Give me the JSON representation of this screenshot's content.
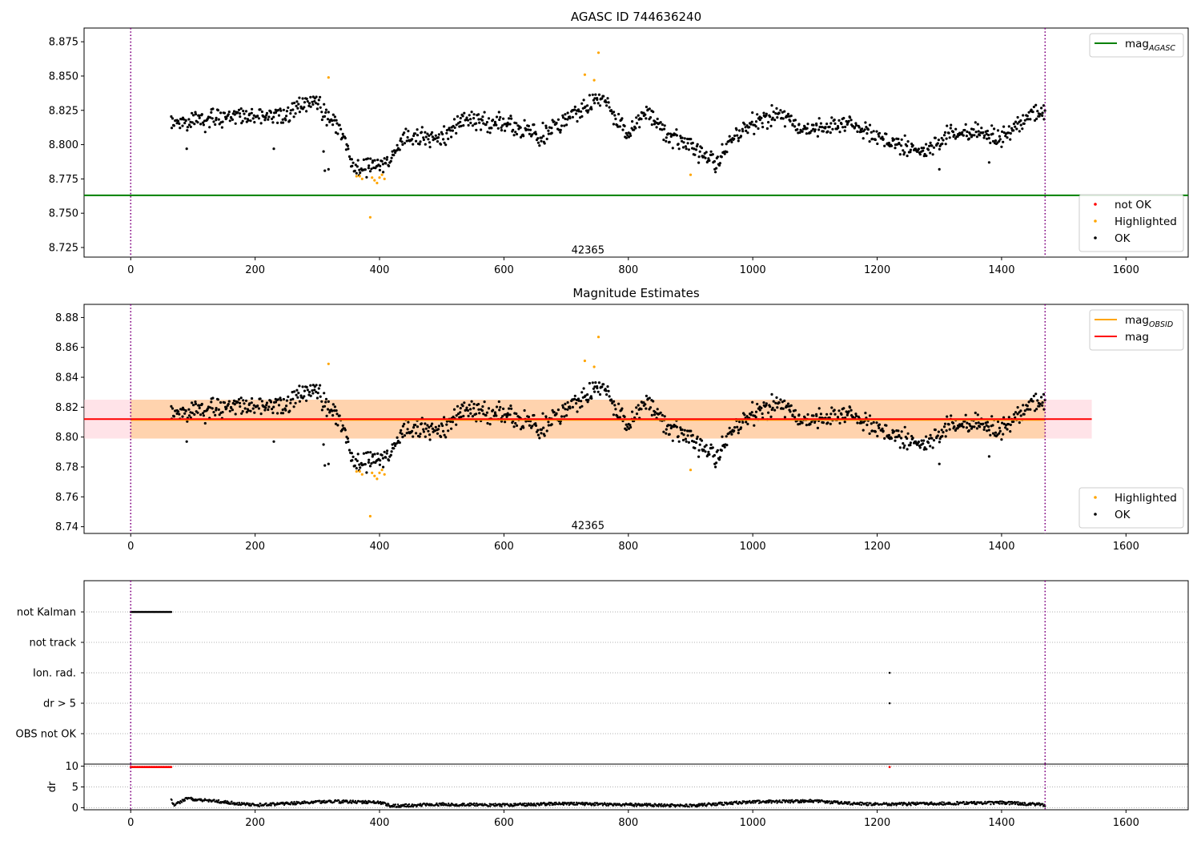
{
  "figure_title": "AGASC ID 744636240",
  "chart_data": [
    {
      "id": "top",
      "type": "scatter",
      "title": "AGASC ID 744636240",
      "xlim": [
        -75,
        1700
      ],
      "ylim": [
        8.718,
        8.885
      ],
      "xticks": [
        0,
        200,
        400,
        600,
        800,
        1000,
        1200,
        1400,
        1600
      ],
      "yticks": [
        "8.725",
        "8.750",
        "8.775",
        "8.800",
        "8.825",
        "8.850",
        "8.875"
      ],
      "vlines": [
        0,
        1470
      ],
      "hlines": [
        {
          "name": "mag_AGASC",
          "value": 8.763,
          "x_range": [
            -75,
            1700
          ],
          "color": "#008000"
        }
      ],
      "annotation": {
        "text": "42365",
        "x": 735,
        "y": 8.723
      },
      "legends": {
        "upper_right": [
          {
            "label_main": "mag",
            "label_sub": "AGASC",
            "kind": "line",
            "color": "#008000"
          }
        ],
        "lower_right": [
          {
            "label": "not OK",
            "kind": "marker",
            "color": "#ff0000"
          },
          {
            "label": "Highlighted",
            "kind": "marker",
            "color": "#ffa500"
          },
          {
            "label": "OK",
            "kind": "marker",
            "color": "#000000"
          }
        ]
      },
      "ok_profile": [
        [
          65,
          8.815
        ],
        [
          100,
          8.817
        ],
        [
          150,
          8.821
        ],
        [
          200,
          8.822
        ],
        [
          250,
          8.82
        ],
        [
          280,
          8.831
        ],
        [
          300,
          8.829
        ],
        [
          320,
          8.82
        ],
        [
          340,
          8.808
        ],
        [
          360,
          8.782
        ],
        [
          380,
          8.784
        ],
        [
          400,
          8.785
        ],
        [
          420,
          8.792
        ],
        [
          440,
          8.805
        ],
        [
          470,
          8.806
        ],
        [
          500,
          8.805
        ],
        [
          540,
          8.818
        ],
        [
          580,
          8.816
        ],
        [
          620,
          8.813
        ],
        [
          660,
          8.806
        ],
        [
          700,
          8.82
        ],
        [
          730,
          8.826
        ],
        [
          760,
          8.835
        ],
        [
          780,
          8.818
        ],
        [
          800,
          8.809
        ],
        [
          830,
          8.824
        ],
        [
          860,
          8.809
        ],
        [
          900,
          8.797
        ],
        [
          940,
          8.788
        ],
        [
          980,
          8.81
        ],
        [
          1040,
          8.823
        ],
        [
          1080,
          8.81
        ],
        [
          1120,
          8.814
        ],
        [
          1160,
          8.815
        ],
        [
          1200,
          8.805
        ],
        [
          1240,
          8.798
        ],
        [
          1280,
          8.795
        ],
        [
          1320,
          8.808
        ],
        [
          1360,
          8.81
        ],
        [
          1400,
          8.805
        ],
        [
          1440,
          8.82
        ],
        [
          1470,
          8.823
        ]
      ],
      "ok_noise": 0.006,
      "ok_count": 1100,
      "ok_outliers": [
        [
          310,
          8.795
        ],
        [
          312,
          8.781
        ],
        [
          318,
          8.782
        ],
        [
          90,
          8.797
        ],
        [
          230,
          8.797
        ],
        [
          940,
          8.78
        ],
        [
          1300,
          8.782
        ],
        [
          1380,
          8.787
        ]
      ],
      "highlighted_points": [
        [
          318,
          8.849
        ],
        [
          363,
          8.777
        ],
        [
          368,
          8.777
        ],
        [
          372,
          8.775
        ],
        [
          385,
          8.747
        ],
        [
          388,
          8.776
        ],
        [
          392,
          8.774
        ],
        [
          396,
          8.772
        ],
        [
          400,
          8.776
        ],
        [
          404,
          8.778
        ],
        [
          408,
          8.775
        ],
        [
          730,
          8.851
        ],
        [
          745,
          8.847
        ],
        [
          752,
          8.867
        ],
        [
          900,
          8.778
        ]
      ],
      "not_ok_points": []
    },
    {
      "id": "middle",
      "type": "scatter",
      "title": "Magnitude Estimates",
      "xlim": [
        -75,
        1700
      ],
      "ylim": [
        8.7355,
        8.8888
      ],
      "xticks": [
        0,
        200,
        400,
        600,
        800,
        1000,
        1200,
        1400,
        1600
      ],
      "yticks": [
        "8.74",
        "8.76",
        "8.78",
        "8.80",
        "8.82",
        "8.84",
        "8.86",
        "8.88"
      ],
      "vlines": [
        0,
        1470
      ],
      "hlines": [
        {
          "name": "mag_OBSID",
          "value": 8.8115,
          "x_range": [
            0,
            1470
          ],
          "color": "#ffa500"
        },
        {
          "name": "mag",
          "value": 8.812,
          "x_range": [
            -75,
            1545
          ],
          "color": "#ff0000"
        }
      ],
      "bands": [
        {
          "name": "mag_band",
          "low": 8.799,
          "high": 8.825,
          "x_range": [
            -75,
            1545
          ],
          "color": "#ffc0cb"
        },
        {
          "name": "mag_OBSID_band",
          "low": 8.799,
          "high": 8.825,
          "x_range": [
            0,
            1470
          ],
          "color": "#ffa500"
        }
      ],
      "annotation": {
        "text": "42365",
        "x": 735,
        "y": 8.7405
      },
      "legends": {
        "upper_right": [
          {
            "label_main": "mag",
            "label_sub": "OBSID",
            "kind": "line",
            "color": "#ffa500"
          },
          {
            "label": "mag",
            "kind": "line",
            "color": "#ff0000"
          }
        ],
        "lower_right": [
          {
            "label": "Highlighted",
            "kind": "marker",
            "color": "#ffa500"
          },
          {
            "label": "OK",
            "kind": "marker",
            "color": "#000000"
          }
        ]
      },
      "same_points_as": "top"
    },
    {
      "id": "flags",
      "type": "scatter",
      "xlim": [
        -75,
        1700
      ],
      "categories": [
        "not Kalman",
        "not track",
        "Ion. rad.",
        "dr > 5",
        "OBS not OK"
      ],
      "vlines": [
        0,
        1470
      ],
      "flag_points": [
        {
          "category": "not Kalman",
          "x_range": [
            0,
            65
          ],
          "count": 40
        },
        {
          "category": "Ion. rad.",
          "x": 1220
        },
        {
          "category": "dr > 5",
          "x": 1220
        }
      ]
    },
    {
      "id": "dr",
      "type": "scatter",
      "xlim": [
        -75,
        1700
      ],
      "ylim": [
        -0.5,
        10.5
      ],
      "ylabel": "dr",
      "yticks": [
        "0",
        "5",
        "10"
      ],
      "xticks": [
        0,
        200,
        400,
        600,
        800,
        1000,
        1200,
        1400,
        1600
      ],
      "vlines": [
        0,
        1470
      ],
      "gridlines": [
        0,
        5,
        10
      ],
      "red_points": {
        "x_range": [
          0,
          65
        ],
        "value": 9.8,
        "count": 40,
        "extra": [
          [
            1220,
            9.8
          ]
        ]
      },
      "black_profile": [
        [
          65,
          1.8
        ],
        [
          70,
          0.6
        ],
        [
          90,
          2.2
        ],
        [
          140,
          1.5
        ],
        [
          200,
          0.6
        ],
        [
          280,
          1.2
        ],
        [
          320,
          1.5
        ],
        [
          400,
          1.3
        ],
        [
          420,
          0.4
        ],
        [
          500,
          0.8
        ],
        [
          600,
          0.6
        ],
        [
          700,
          1.0
        ],
        [
          800,
          0.7
        ],
        [
          900,
          0.5
        ],
        [
          1000,
          1.4
        ],
        [
          1100,
          1.6
        ],
        [
          1140,
          1.2
        ],
        [
          1200,
          0.8
        ],
        [
          1300,
          1.0
        ],
        [
          1400,
          1.2
        ],
        [
          1470,
          0.7
        ]
      ],
      "black_count": 1400
    }
  ]
}
